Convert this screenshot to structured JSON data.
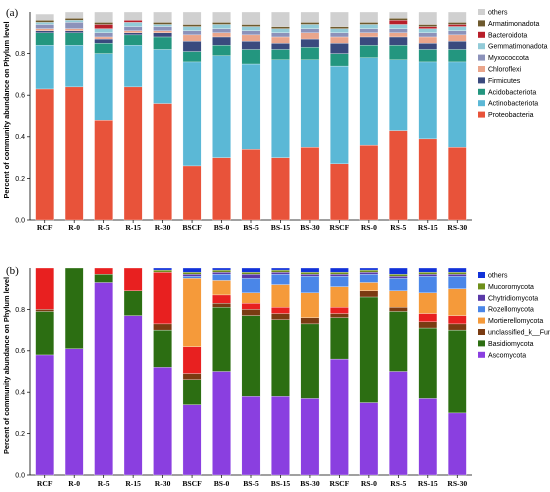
{
  "chart_data": [
    {
      "type": "bar",
      "stacked": true,
      "panel_label": "(a)",
      "ylabel": "Percent of community abundance on Phylum level",
      "ylim": [
        0,
        1.0
      ],
      "yticks": [
        "0.0",
        "0.2",
        "0.4",
        "0.6",
        "0.8"
      ],
      "categories": [
        "RCF",
        "R-0",
        "R-5",
        "R-15",
        "R-30",
        "BSCF",
        "BS-0",
        "BS-5",
        "BS-15",
        "BS-30",
        "RSCF",
        "RS-0",
        "RS-5",
        "RS-15",
        "RS-30"
      ],
      "legend_position": "right",
      "series": [
        {
          "name": "Proteobacteria",
          "color": "#e8533a",
          "values": [
            0.63,
            0.64,
            0.48,
            0.64,
            0.56,
            0.26,
            0.3,
            0.34,
            0.3,
            0.35,
            0.27,
            0.36,
            0.43,
            0.39,
            0.35
          ]
        },
        {
          "name": "Actinobacteriota",
          "color": "#5bb8d6",
          "values": [
            0.21,
            0.2,
            0.32,
            0.2,
            0.26,
            0.5,
            0.49,
            0.41,
            0.47,
            0.42,
            0.47,
            0.42,
            0.34,
            0.37,
            0.41
          ]
        },
        {
          "name": "Acidobacteriota",
          "color": "#23967f",
          "values": [
            0.06,
            0.06,
            0.05,
            0.05,
            0.06,
            0.05,
            0.05,
            0.07,
            0.05,
            0.06,
            0.06,
            0.06,
            0.07,
            0.06,
            0.06
          ]
        },
        {
          "name": "Firmicutes",
          "color": "#3a4a7e",
          "values": [
            0.01,
            0.01,
            0.02,
            0.01,
            0.02,
            0.05,
            0.04,
            0.04,
            0.03,
            0.04,
            0.05,
            0.04,
            0.04,
            0.03,
            0.04
          ]
        },
        {
          "name": "Chloroflexi",
          "color": "#eaa58b",
          "values": [
            0.01,
            0.01,
            0.01,
            0.01,
            0.01,
            0.03,
            0.02,
            0.03,
            0.03,
            0.03,
            0.03,
            0.02,
            0.02,
            0.03,
            0.03
          ]
        },
        {
          "name": "Myxococcota",
          "color": "#8c92ba",
          "values": [
            0.02,
            0.03,
            0.02,
            0.02,
            0.02,
            0.02,
            0.02,
            0.02,
            0.02,
            0.02,
            0.02,
            0.02,
            0.02,
            0.02,
            0.02
          ]
        },
        {
          "name": "Gemmatimonadota",
          "color": "#92cbd8",
          "values": [
            0.01,
            0.01,
            0.02,
            0.02,
            0.01,
            0.02,
            0.02,
            0.02,
            0.02,
            0.02,
            0.02,
            0.02,
            0.02,
            0.02,
            0.02
          ]
        },
        {
          "name": "Bacteroidota",
          "color": "#b81f2a",
          "values": [
            0.0,
            0.0,
            0.02,
            0.01,
            0.0,
            0.0,
            0.0,
            0.0,
            0.0,
            0.0,
            0.0,
            0.0,
            0.02,
            0.01,
            0.01
          ]
        },
        {
          "name": "Armatimonadota",
          "color": "#6e5a2e",
          "values": [
            0.01,
            0.01,
            0.01,
            0.0,
            0.01,
            0.01,
            0.01,
            0.01,
            0.01,
            0.01,
            0.01,
            0.01,
            0.01,
            0.01,
            0.01
          ]
        },
        {
          "name": "others",
          "color": "#d0d0d0",
          "values": [
            0.03,
            0.03,
            0.05,
            0.04,
            0.05,
            0.06,
            0.05,
            0.06,
            0.07,
            0.05,
            0.07,
            0.05,
            0.03,
            0.06,
            0.05
          ]
        }
      ]
    },
    {
      "type": "bar",
      "stacked": true,
      "panel_label": "(b)",
      "ylabel": "Percent of community abundance on Phylum level",
      "ylim": [
        0,
        1.0
      ],
      "yticks": [
        "0.0",
        "0.2",
        "0.4",
        "0.6",
        "0.8"
      ],
      "categories": [
        "RCF",
        "R-0",
        "R-5",
        "R-15",
        "R-30",
        "BSCF",
        "BS-0",
        "BS-5",
        "BS-15",
        "BS-30",
        "RSCF",
        "RS-0",
        "RS-5",
        "RS-15",
        "RS-30"
      ],
      "legend_position": "right",
      "series": [
        {
          "name": "Ascomycota",
          "color": "#8a3fe0",
          "values": [
            0.58,
            0.61,
            0.93,
            0.77,
            0.52,
            0.34,
            0.5,
            0.38,
            0.38,
            0.37,
            0.56,
            0.35,
            0.5,
            0.37,
            0.3
          ]
        },
        {
          "name": "Basidiomycota",
          "color": "#2c6e12",
          "values": [
            0.21,
            0.39,
            0.04,
            0.12,
            0.18,
            0.12,
            0.31,
            0.39,
            0.37,
            0.36,
            0.2,
            0.51,
            0.29,
            0.34,
            0.4
          ]
        },
        {
          "name": "unclassified_k__Fungi",
          "color": "#7a3b12",
          "values": [
            0.01,
            0.0,
            0.0,
            0.0,
            0.03,
            0.03,
            0.02,
            0.03,
            0.03,
            0.03,
            0.02,
            0.03,
            0.02,
            0.03,
            0.03
          ]
        },
        {
          "name": "Mortierellomycota",
          "color": "#f59a3a",
          "values": [
            0.0,
            0.0,
            0.0,
            0.0,
            0.0,
            0.33,
            0.07,
            0.05,
            0.11,
            0.12,
            0.1,
            0.04,
            0.08,
            0.1,
            0.13
          ]
        },
        {
          "name": "Rozellomycota",
          "color": "#4a86e8",
          "values": [
            0.0,
            0.0,
            0.0,
            0.0,
            0.0,
            0.01,
            0.03,
            0.07,
            0.05,
            0.08,
            0.05,
            0.04,
            0.06,
            0.08,
            0.06
          ]
        },
        {
          "name": "Chytridiomycota",
          "color": "#5a3aa8",
          "values": [
            0.0,
            0.0,
            0.0,
            0.0,
            0.0,
            0.01,
            0.01,
            0.02,
            0.01,
            0.01,
            0.01,
            0.01,
            0.01,
            0.01,
            0.01
          ]
        },
        {
          "name": "Mucoromycota",
          "color": "#6e8f1a",
          "values": [
            0.0,
            0.0,
            0.0,
            0.0,
            0.01,
            0.01,
            0.01,
            0.01,
            0.01,
            0.01,
            0.01,
            0.01,
            0.01,
            0.01,
            0.01
          ]
        },
        {
          "name": "others",
          "color": "#1232d8",
          "values": [
            0.0,
            0.0,
            0.0,
            0.0,
            0.01,
            0.02,
            0.01,
            0.02,
            0.01,
            0.02,
            0.02,
            0.01,
            0.03,
            0.02,
            0.02
          ]
        }
      ],
      "extra_series": [
        {
          "name": "",
          "color": "#e82020",
          "values": [
            0.2,
            0.0,
            0.03,
            0.11,
            0.25,
            0.13,
            0.04,
            0.03,
            0.03,
            0.0,
            0.03,
            0.0,
            0.0,
            0.04,
            0.04
          ]
        }
      ]
    }
  ]
}
